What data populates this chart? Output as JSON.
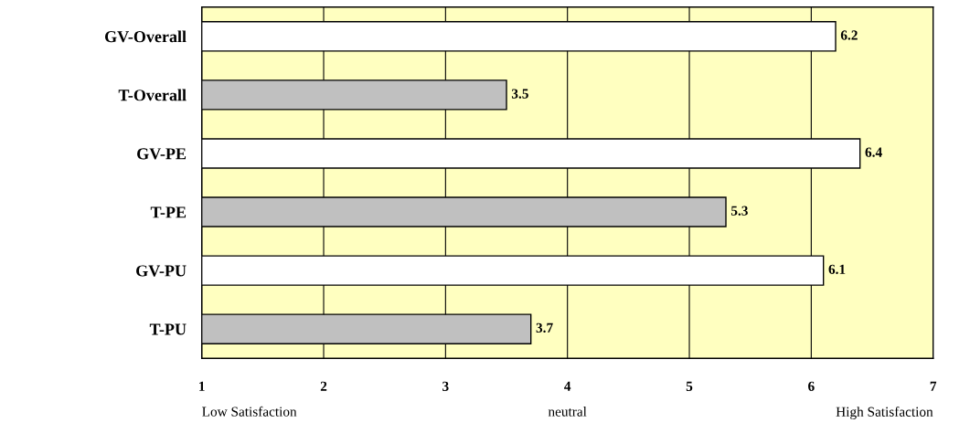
{
  "chart_data": {
    "type": "bar",
    "orientation": "horizontal",
    "categories": [
      "GV-Overall",
      "T-Overall",
      "GV-PE",
      "T-PE",
      "GV-PU",
      "T-PU"
    ],
    "values": [
      6.2,
      3.5,
      6.4,
      5.3,
      6.1,
      3.7
    ],
    "colors": [
      "#ffffff",
      "#c0c0c0",
      "#ffffff",
      "#c0c0c0",
      "#ffffff",
      "#c0c0c0"
    ],
    "xlim": [
      1,
      7
    ],
    "xticks": [
      1,
      2,
      3,
      4,
      5,
      6,
      7
    ],
    "grid": "x",
    "data_labels": true,
    "annotations": [
      "Low Satisfaction",
      "neutral",
      "High Satisfaction"
    ]
  }
}
